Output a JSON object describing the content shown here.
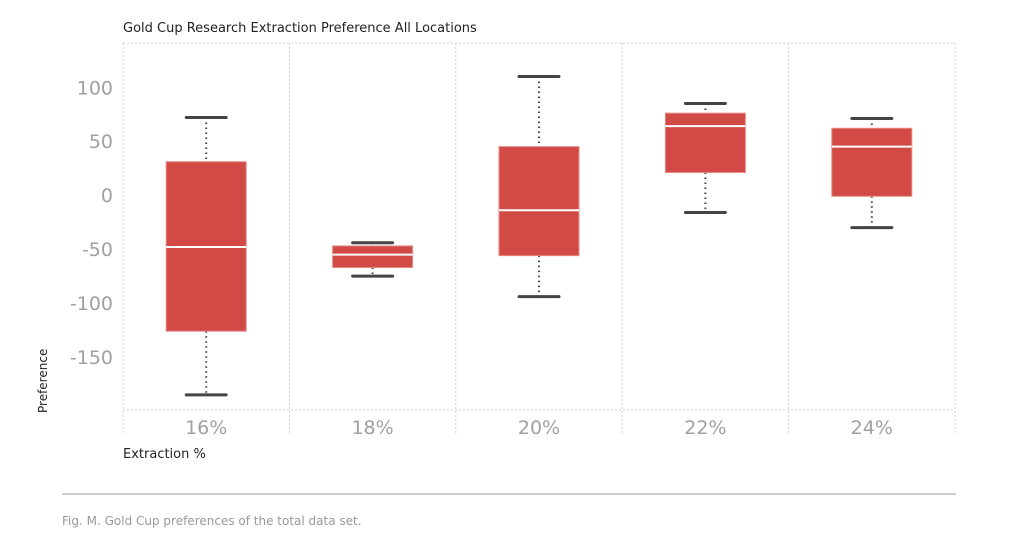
{
  "chart_data": {
    "type": "box",
    "title": "Gold Cup Research Extraction Preference All Locations",
    "xlabel": "Extraction %",
    "ylabel": "Preference",
    "categories": [
      "16%",
      "18%",
      "20%",
      "22%",
      "24%"
    ],
    "boxes": [
      {
        "min": -185,
        "q1": -126,
        "median": -48,
        "q3": 31,
        "max": 72
      },
      {
        "min": -75,
        "q1": -67,
        "median": -55,
        "q3": -47,
        "max": -44
      },
      {
        "min": -94,
        "q1": -56,
        "median": -14,
        "q3": 45,
        "max": 110
      },
      {
        "min": -16,
        "q1": 21,
        "median": 64,
        "q3": 76,
        "max": 85
      },
      {
        "min": -30,
        "q1": -1,
        "median": 45,
        "q3": 62,
        "max": 71
      }
    ],
    "yticks": [
      100,
      50,
      0,
      -50,
      -100,
      -150
    ],
    "ylim": [
      -199,
      141
    ],
    "grid": true,
    "colors": {
      "box": "#d14a46",
      "median": "#ffffff",
      "whisker": "#444444",
      "grid": "#d0d0d0"
    }
  },
  "caption": "Fig. M. Gold Cup preferences of the total data set."
}
